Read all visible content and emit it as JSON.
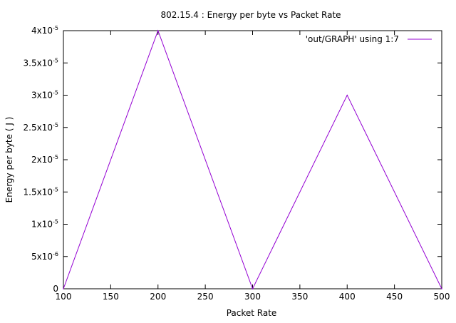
{
  "chart_data": {
    "type": "line",
    "title": "802.15.4 : Energy per byte vs Packet Rate",
    "xlabel": "Packet Rate",
    "ylabel": "Energy per byte ( J )",
    "xlim": [
      100,
      500
    ],
    "ylim": [
      0,
      4e-05
    ],
    "x_ticks": [
      {
        "value": 100,
        "label": "100"
      },
      {
        "value": 150,
        "label": "150"
      },
      {
        "value": 200,
        "label": "200"
      },
      {
        "value": 250,
        "label": "250"
      },
      {
        "value": 300,
        "label": "300"
      },
      {
        "value": 350,
        "label": "350"
      },
      {
        "value": 400,
        "label": "400"
      },
      {
        "value": 450,
        "label": "450"
      },
      {
        "value": 500,
        "label": "500"
      }
    ],
    "y_ticks": [
      {
        "value": 0,
        "mant": "0",
        "exp": ""
      },
      {
        "value": 5e-06,
        "mant": "5x10",
        "exp": "-6"
      },
      {
        "value": 1e-05,
        "mant": "1x10",
        "exp": "-5"
      },
      {
        "value": 1.5e-05,
        "mant": "1.5x10",
        "exp": "-5"
      },
      {
        "value": 2e-05,
        "mant": "2x10",
        "exp": "-5"
      },
      {
        "value": 2.5e-05,
        "mant": "2.5x10",
        "exp": "-5"
      },
      {
        "value": 3e-05,
        "mant": "3x10",
        "exp": "-5"
      },
      {
        "value": 3.5e-05,
        "mant": "3.5x10",
        "exp": "-5"
      },
      {
        "value": 4e-05,
        "mant": "4x10",
        "exp": "-5"
      }
    ],
    "grid": false,
    "legend_position": "top-right",
    "series": [
      {
        "name": "'out/GRAPH' using 1:7",
        "color": "#9400d3",
        "x": [
          100,
          200,
          300,
          400,
          500
        ],
        "y": [
          0,
          4e-05,
          0,
          3e-05,
          0
        ]
      }
    ]
  }
}
